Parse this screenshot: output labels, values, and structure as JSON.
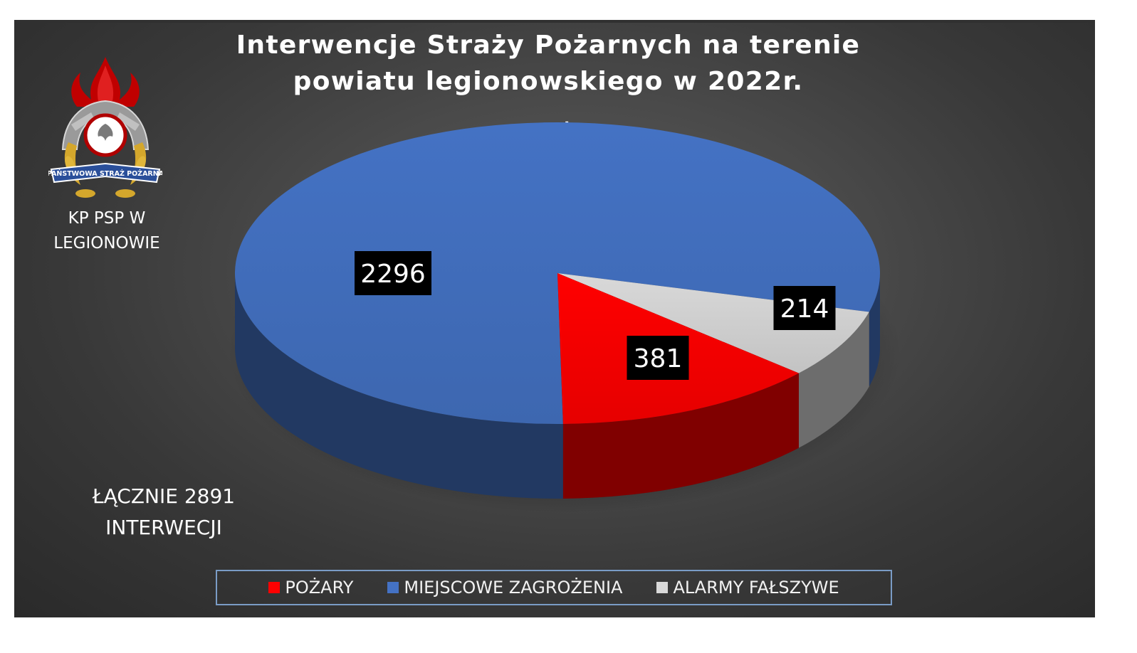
{
  "chart_data": {
    "type": "pie",
    "title": "Interwencje Straży Pożarnych na terenie powiatu legionowskiego w 2022r.",
    "title_suffix": ".",
    "slices": [
      {
        "label": "MIEJSCOWE ZAGROŻENIA",
        "value": 2296,
        "color": "#4472c4"
      },
      {
        "label": "POŻARY",
        "value": 381,
        "color": "#ff0000"
      },
      {
        "label": "ALARMY FAŁSZYWE",
        "value": 214,
        "color": "#d9d9d9"
      }
    ],
    "legend": {
      "placement": "bottom",
      "items": [
        {
          "label": "POŻARY",
          "color": "#ff0000"
        },
        {
          "label": "MIEJSCOWE ZAGROŻENIA",
          "color": "#4472c4"
        },
        {
          "label": "ALARMY FAŁSZYWE",
          "color": "#d9d9d9"
        }
      ]
    },
    "style": "3d-pie",
    "data_label_background": "#000000"
  },
  "organization": {
    "label": "KP PSP W LEGIONOWIE",
    "logo": {
      "name": "fire-service-emblem-icon",
      "ribbon_text": "PAŃSTWOWA STRAŻ POŻARNA"
    }
  },
  "total": {
    "label": "ŁĄCZNIE 2891 INTERWECJI"
  }
}
